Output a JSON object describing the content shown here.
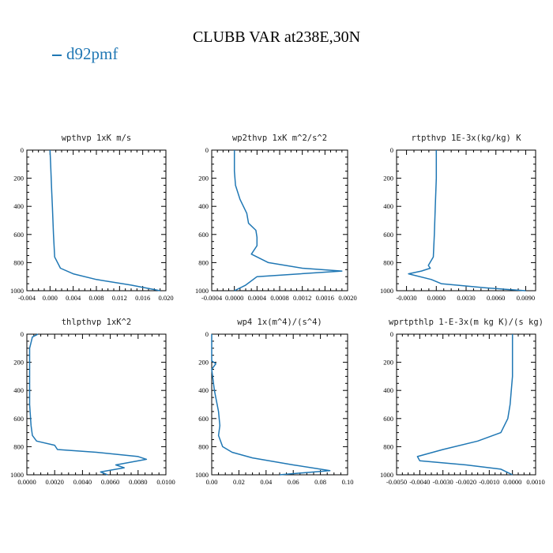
{
  "title": "CLUBB VAR at238E,30N",
  "legend": [
    {
      "name": "d92pmf",
      "color": "#1f77b4"
    }
  ],
  "chart_data": [
    {
      "type": "line",
      "title": "wpthvp  1xK m/s",
      "xlim": [
        -0.004,
        0.02
      ],
      "ylim": [
        1000,
        0
      ],
      "xticks": [
        "-0.004",
        "0.000",
        "0.004",
        "0.008",
        "0.012",
        "0.016",
        "0.020"
      ],
      "yticks": [
        "0",
        "200",
        "400",
        "600",
        "800",
        "1000"
      ],
      "series": [
        {
          "name": "d92pmf",
          "x": [
            0.0,
            0.0001,
            0.0002,
            0.0003,
            0.0004,
            0.0005,
            0.0006,
            0.0008,
            0.0018,
            0.004,
            0.008,
            0.014,
            0.019
          ],
          "y": [
            0,
            100,
            200,
            300,
            400,
            500,
            600,
            760,
            840,
            880,
            920,
            960,
            1000
          ]
        }
      ]
    },
    {
      "type": "line",
      "title": "wp2thvp  1xK m^2/s^2",
      "xlim": [
        -0.0004,
        0.002
      ],
      "ylim": [
        1000,
        0
      ],
      "xticks": [
        "-0.0004",
        "0.0000",
        "0.0004",
        "0.0008",
        "0.0012",
        "0.0016",
        "0.0020"
      ],
      "yticks": [
        "0",
        "200",
        "400",
        "600",
        "800",
        "1000"
      ],
      "series": [
        {
          "name": "d92pmf",
          "x": [
            0.0,
            0.0,
            2e-05,
            0.0001,
            0.00022,
            0.00025,
            0.00038,
            0.0004,
            0.0004,
            0.0003,
            0.0006,
            0.0012,
            0.0019,
            0.0004,
            0.0002,
            0.0
          ],
          "y": [
            0,
            150,
            250,
            350,
            450,
            520,
            570,
            620,
            680,
            740,
            800,
            840,
            860,
            900,
            960,
            1000
          ]
        }
      ]
    },
    {
      "type": "line",
      "title": "rtpthvp  1E-3x(kg/kg) K",
      "xlim": [
        -0.004,
        0.01
      ],
      "ylim": [
        1000,
        0
      ],
      "xticks": [
        "-0.0030",
        "0.0000",
        "0.0030",
        "0.0060",
        "0.0090"
      ],
      "yticks": [
        "0",
        "200",
        "400",
        "600",
        "800",
        "1000"
      ],
      "series": [
        {
          "name": "d92pmf",
          "x": [
            0.0,
            0.0,
            -0.0001,
            -0.0002,
            -0.0003,
            -0.0008,
            -0.0006,
            -0.0015,
            -0.0028,
            -0.0005,
            0.0005,
            0.005,
            0.009
          ],
          "y": [
            0,
            200,
            400,
            600,
            760,
            820,
            840,
            860,
            880,
            920,
            950,
            980,
            1000
          ]
        }
      ]
    },
    {
      "type": "line",
      "title": "thlpthvp  1xK^2",
      "xlim": [
        0.0,
        0.01
      ],
      "ylim": [
        1000,
        0
      ],
      "xticks": [
        "0.0000",
        "0.0020",
        "0.0040",
        "0.0060",
        "0.0080",
        "0.0100"
      ],
      "yticks": [
        "0",
        "200",
        "400",
        "600",
        "800",
        "1000"
      ],
      "series": [
        {
          "name": "d92pmf",
          "x": [
            0.0008,
            0.0004,
            0.0002,
            0.0002,
            0.0002,
            0.0003,
            0.0004,
            0.0007,
            0.002,
            0.0022,
            0.005,
            0.008,
            0.0086,
            0.0064,
            0.007,
            0.0053,
            0.0058
          ],
          "y": [
            0,
            20,
            100,
            300,
            500,
            650,
            720,
            760,
            790,
            820,
            840,
            870,
            890,
            930,
            950,
            980,
            1000
          ]
        }
      ]
    },
    {
      "type": "line",
      "title": "wp4  1x(m^4)/(s^4)",
      "xlim": [
        0.0,
        0.1
      ],
      "ylim": [
        1000,
        0
      ],
      "xticks": [
        "0.00",
        "0.02",
        "0.04",
        "0.06",
        "0.08",
        "0.10"
      ],
      "yticks": [
        "0",
        "200",
        "400",
        "600",
        "800",
        "1000"
      ],
      "series": [
        {
          "name": "d92pmf",
          "x": [
            0.0,
            0.0,
            0.003,
            0.0,
            0.002,
            0.005,
            0.006,
            0.005,
            0.008,
            0.015,
            0.03,
            0.06,
            0.087,
            0.05
          ],
          "y": [
            0,
            190,
            210,
            250,
            400,
            550,
            650,
            720,
            800,
            840,
            880,
            930,
            970,
            1000
          ]
        }
      ]
    },
    {
      "type": "line",
      "title": "wprtpthlp  1-E-3x(m kg K)/(s kg)",
      "xlim": [
        -0.005,
        0.001
      ],
      "ylim": [
        1000,
        0
      ],
      "xticks": [
        "-0.0050",
        "-0.0040",
        "-0.0030",
        "-0.0020",
        "-0.0010",
        "0.0000",
        "0.0010"
      ],
      "yticks": [
        "0",
        "200",
        "400",
        "600",
        "800",
        "1000"
      ],
      "series": [
        {
          "name": "d92pmf",
          "x": [
            0.0,
            0.0,
            -0.0001,
            -0.0002,
            -0.0005,
            -0.0015,
            -0.003,
            -0.0041,
            -0.004,
            -0.002,
            -0.0005,
            0.0
          ],
          "y": [
            0,
            300,
            500,
            600,
            700,
            760,
            820,
            870,
            900,
            930,
            960,
            1000
          ]
        }
      ]
    }
  ]
}
